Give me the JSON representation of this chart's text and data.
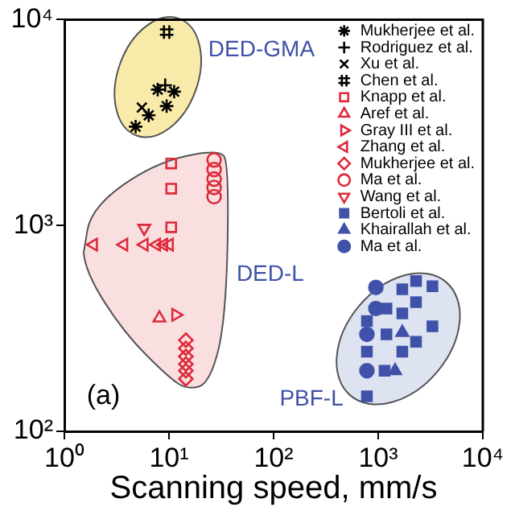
{
  "chart_data": {
    "type": "scatter",
    "xlabel": "Scanning speed, mm/s",
    "xlim": [
      1,
      10000
    ],
    "ylim": [
      100,
      10000
    ],
    "log": "xy",
    "grid": false,
    "legend": "top right",
    "xticks": [
      {
        "value": 1,
        "label": "10⁰"
      },
      {
        "value": 10,
        "label": "10¹"
      },
      {
        "value": 100,
        "label": "10²"
      },
      {
        "value": 1000,
        "label": "10³"
      },
      {
        "value": 10000,
        "label": "10⁴"
      }
    ],
    "yticks": [
      {
        "value": 100,
        "label": "10²"
      },
      {
        "value": 1000,
        "label": "10³"
      },
      {
        "value": 10000,
        "label": "10⁴"
      }
    ],
    "annotations": [
      "DED-GMA",
      "DED-L",
      "PBF-L",
      "(a)"
    ],
    "series": [
      {
        "name": "Mukherjee et al.",
        "color": "#000000",
        "marker": "cross-star",
        "x": [
          4.8,
          6.4,
          9.5,
          7.8,
          11.2
        ],
        "values": [
          3020,
          3430,
          3800,
          4570,
          4470
        ]
      },
      {
        "name": "Rodriguez et al.",
        "color": "#000000",
        "marker": "cross",
        "x": [
          9.2
        ],
        "values": [
          4800
        ]
      },
      {
        "name": "Xu et al.",
        "color": "#000000",
        "marker": "x",
        "x": [
          5.5
        ],
        "values": [
          3740
        ]
      },
      {
        "name": "Chen et al.",
        "color": "#000000",
        "marker": "cross-hash",
        "x": [
          9.5
        ],
        "values": [
          8700
        ]
      },
      {
        "name": "Knapp et al.",
        "color": "#dd2a3a",
        "marker": "square-open",
        "x": [
          10.5,
          10.5,
          10.5
        ],
        "values": [
          2000,
          1510,
          980
        ]
      },
      {
        "name": "Aref et al.",
        "color": "#dd2a3a",
        "marker": "triangle-open",
        "x": [
          8.1
        ],
        "values": [
          355
        ]
      },
      {
        "name": "Gray III et al.",
        "color": "#dd2a3a",
        "marker": "triangle-right-open",
        "x": [
          11.6
        ],
        "values": [
          368
        ]
      },
      {
        "name": "Zhang et al.",
        "color": "#dd2a3a",
        "marker": "triangle-left-open",
        "x": [
          1.9,
          3.7,
          5.8,
          7.6,
          8.9,
          10.1
        ],
        "values": [
          807,
          807,
          807,
          807,
          807,
          807
        ]
      },
      {
        "name": "Mukherjee et al.",
        "color": "#dd2a3a",
        "marker": "diamond-open",
        "x": [
          14.5,
          14.5,
          14.5,
          14.5,
          14.5,
          14.5
        ],
        "values": [
          277,
          253,
          231,
          212,
          197,
          180
        ]
      },
      {
        "name": "Ma et al.",
        "color": "#dd2a3a",
        "marker": "circle-open",
        "x": [
          27,
          27,
          27,
          27,
          27
        ],
        "values": [
          2080,
          1870,
          1680,
          1530,
          1380
        ]
      },
      {
        "name": "Wang et al.",
        "color": "#dd2a3a",
        "marker": "triangle-down-open",
        "x": [
          5.8
        ],
        "values": [
          970
        ]
      },
      {
        "name": "Bertoli et al.",
        "color": "#3f51a8",
        "marker": "square",
        "x": [
          1200,
          1700,
          2300,
          3300,
          2300,
          1700,
          780,
          1200,
          2300,
          3300,
          1700,
          780,
          1150,
          780
        ],
        "values": [
          395,
          490,
          537,
          507,
          424,
          374,
          343,
          296,
          272,
          324,
          244,
          244,
          197,
          148
        ]
      },
      {
        "name": "Khairallah et al.",
        "color": "#3f51a8",
        "marker": "triangle",
        "x": [
          1700,
          1450
        ],
        "values": [
          302,
          197
        ]
      },
      {
        "name": "Ma et al.",
        "color": "#3f51a8",
        "marker": "circle",
        "x": [
          950,
          950,
          780,
          780
        ],
        "values": [
          500,
          395,
          296,
          197
        ]
      }
    ]
  }
}
